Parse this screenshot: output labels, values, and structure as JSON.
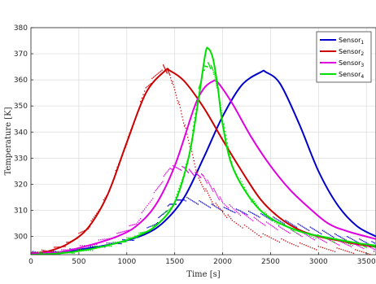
{
  "chart_data": {
    "type": "line",
    "xlabel": "Time [s]",
    "ylabel": "Temperature [K]",
    "xlim": [
      0,
      3600
    ],
    "ylim": [
      293,
      380
    ],
    "xticks": [
      0,
      500,
      1000,
      1500,
      2000,
      2500,
      3000,
      3500
    ],
    "yticks": [
      300,
      310,
      320,
      330,
      340,
      350,
      360,
      370,
      380
    ],
    "grid": true,
    "legend_position": "top-right",
    "series": [
      {
        "name": "Sensor",
        "subscript": "1",
        "color": "#0000cc",
        "x": [
          0,
          300,
          600,
          900,
          1200,
          1400,
          1600,
          1800,
          2000,
          2200,
          2400,
          2450,
          2600,
          2800,
          3000,
          3200,
          3400,
          3600
        ],
        "y": [
          293.5,
          294,
          295.5,
          297.5,
          301,
          306,
          315,
          330,
          346,
          358,
          363,
          363,
          358.5,
          343,
          325,
          312,
          304,
          300
        ],
        "measured": {
          "x": [
            0,
            300,
            600,
            900,
            1100,
            1300,
            1450,
            1600,
            1800,
            2000,
            2200,
            2400,
            2600,
            2800,
            3000,
            3200,
            3400,
            3600
          ],
          "y": [
            293.5,
            294,
            295.5,
            297.5,
            299.5,
            305,
            312,
            314.5,
            312.5,
            310.5,
            309.5,
            308,
            306,
            304,
            302,
            300,
            298.5,
            297
          ]
        }
      },
      {
        "name": "Sensor",
        "subscript": "2",
        "color": "#cc0000",
        "x": [
          0,
          200,
          400,
          600,
          800,
          1000,
          1200,
          1400,
          1450,
          1600,
          1800,
          2000,
          2200,
          2400,
          2600,
          2800,
          3000,
          3200,
          3400,
          3600
        ],
        "y": [
          293.5,
          294.5,
          297.5,
          303.5,
          316,
          336,
          355,
          363.5,
          363.5,
          359.5,
          349.5,
          337,
          325,
          314,
          307,
          302.5,
          300,
          298.5,
          297,
          296
        ],
        "measured": {
          "x": [
            0,
            200,
            400,
            600,
            800,
            1000,
            1200,
            1380,
            1450,
            1550,
            1650,
            1750,
            1900,
            2100,
            2400,
            2700,
            3000,
            3300,
            3600
          ],
          "y": [
            293.5,
            294.5,
            297.5,
            303.5,
            316,
            336,
            357,
            365,
            362,
            350,
            336,
            322,
            313,
            306,
            300.5,
            297.5,
            295.5,
            294.5,
            293.5
          ]
        }
      },
      {
        "name": "Sensor",
        "subscript": "3",
        "color": "#e000e0",
        "x": [
          0,
          300,
          600,
          900,
          1100,
          1300,
          1500,
          1700,
          1800,
          1900,
          1950,
          2100,
          2300,
          2500,
          2700,
          2900,
          3100,
          3300,
          3600
        ],
        "y": [
          293.5,
          294,
          296.5,
          300,
          304,
          312,
          327,
          349,
          356.5,
          359.5,
          359,
          351,
          338,
          327,
          318,
          311,
          305,
          302,
          299
        ],
        "measured": {
          "x": [
            0,
            300,
            600,
            900,
            1100,
            1300,
            1450,
            1600,
            1700,
            1800,
            1900,
            2000,
            2200,
            2400,
            2600,
            2800,
            3000,
            3200,
            3400,
            3600
          ],
          "y": [
            293.5,
            294,
            296.5,
            300.5,
            305,
            317,
            326.5,
            326,
            324,
            323,
            318,
            313,
            308.5,
            305.5,
            303,
            301,
            299,
            297.5,
            296.5,
            295.5
          ]
        }
      },
      {
        "name": "Sensor",
        "subscript": "4",
        "color": "#00e000",
        "x": [
          0,
          300,
          600,
          900,
          1100,
          1300,
          1500,
          1650,
          1750,
          1820,
          1850,
          1900,
          1950,
          2000,
          2100,
          2300,
          2500,
          2800,
          3100,
          3400,
          3600
        ],
        "y": [
          293,
          293.5,
          295,
          297.5,
          300,
          304,
          313,
          331,
          353,
          370,
          372,
          368,
          357,
          343,
          327,
          314,
          307,
          302,
          299.5,
          297.5,
          296.5
        ],
        "measured": {
          "x": [
            0,
            300,
            600,
            900,
            1100,
            1300,
            1500,
            1650,
            1750,
            1800,
            1850,
            1900,
            1950,
            2000,
            2100,
            2300,
            2500,
            2800,
            3100,
            3400,
            3600
          ],
          "y": [
            293,
            293.5,
            295,
            297.5,
            300,
            304,
            313,
            331,
            356,
            364,
            366,
            364,
            356,
            345,
            327,
            314,
            306.5,
            301.5,
            299,
            297,
            296
          ]
        }
      }
    ]
  }
}
